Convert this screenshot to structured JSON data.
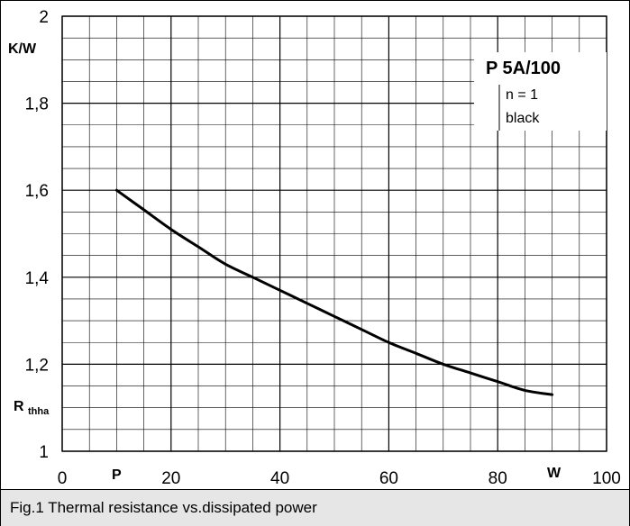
{
  "caption": "Fig.1 Thermal resistance vs.dissipated power",
  "chart_data": {
    "type": "line",
    "xlim": [
      0,
      100
    ],
    "ylim": [
      1,
      2
    ],
    "x_ticks": [
      0,
      20,
      40,
      60,
      80,
      100
    ],
    "x_tick_labels": [
      "0",
      "20",
      "40",
      "60",
      "80",
      "100"
    ],
    "y_ticks": [
      1,
      1.2,
      1.4,
      1.6,
      1.8,
      2
    ],
    "y_tick_labels": [
      "1",
      "1,2",
      "1,4",
      "1,6",
      "1,8",
      "2"
    ],
    "xlabel": "P",
    "xunit": "W",
    "ylabel_main": "R",
    "ylabel_sub": "thha",
    "yunit": "K/W",
    "grid": true,
    "grid_minor_x_step": 5,
    "grid_minor_y_step": 0.05,
    "series": [
      {
        "x": [
          10,
          15,
          20,
          25,
          30,
          35,
          40,
          45,
          50,
          55,
          60,
          65,
          70,
          75,
          80,
          85,
          90
        ],
        "y": [
          1.6,
          1.555,
          1.51,
          1.47,
          1.43,
          1.4,
          1.37,
          1.34,
          1.31,
          1.28,
          1.25,
          1.225,
          1.2,
          1.18,
          1.16,
          1.14,
          1.13
        ],
        "color": "#000000"
      }
    ],
    "annotation": {
      "title": "P 5A/100",
      "lines": [
        "n = 1",
        "black"
      ]
    }
  }
}
